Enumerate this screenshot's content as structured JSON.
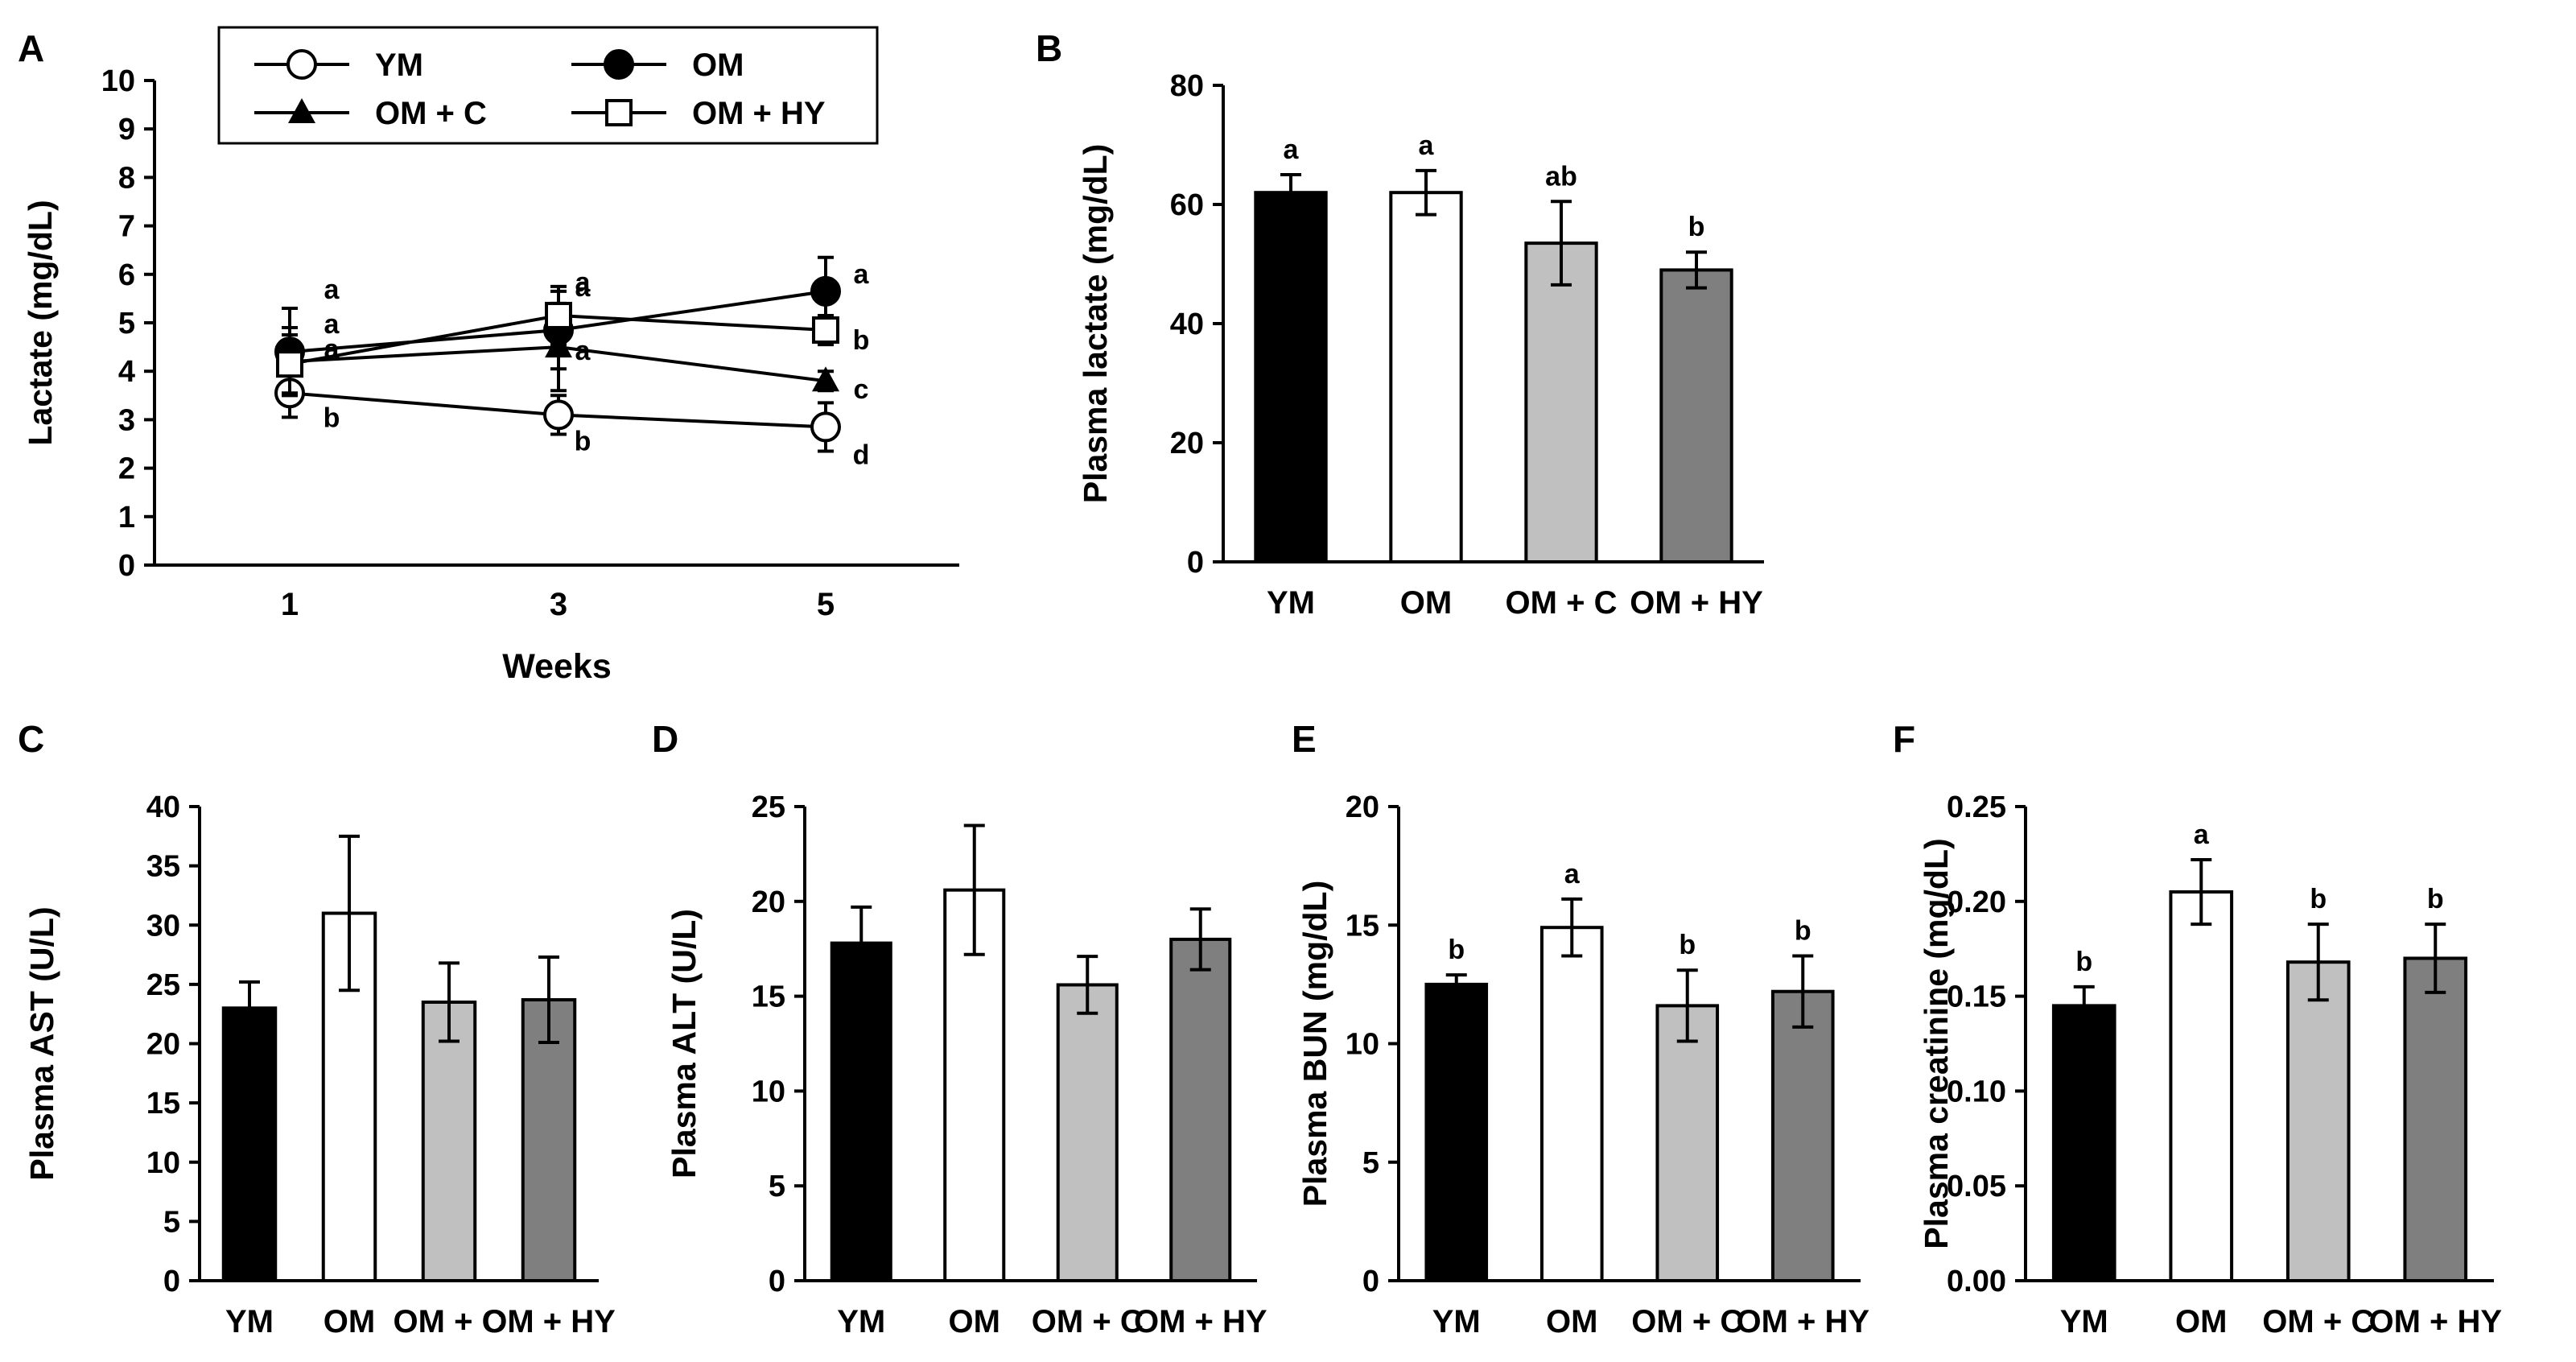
{
  "chart_data": [
    {
      "panel": "A",
      "type": "line",
      "title": "",
      "xlabel": "Weeks",
      "ylabel": "Lactate (mg/dL)",
      "x": [
        "1",
        "3",
        "5"
      ],
      "ylim": [
        0,
        10
      ],
      "yticks": [
        "0",
        "1",
        "2",
        "3",
        "4",
        "5",
        "6",
        "7",
        "8",
        "9",
        "10"
      ],
      "legend_position": "top",
      "series": [
        {
          "name": "YM",
          "marker": "open-circle",
          "values": [
            3.55,
            3.1,
            2.85
          ],
          "errors": [
            0.5,
            0.4,
            0.5
          ],
          "letters": [
            "b",
            "b",
            "d"
          ]
        },
        {
          "name": "OM",
          "marker": "filled-circle",
          "values": [
            4.4,
            4.85,
            5.65
          ],
          "errors": [
            0.9,
            0.8,
            0.7
          ],
          "letters": [
            "a",
            "a",
            "a"
          ]
        },
        {
          "name": "OM + C",
          "marker": "filled-triangle",
          "values": [
            4.2,
            4.5,
            3.8
          ],
          "errors": [
            0.7,
            0.9,
            0.2
          ],
          "letters": [
            "a",
            "a",
            "c"
          ]
        },
        {
          "name": "OM + HY",
          "marker": "open-square",
          "values": [
            4.15,
            5.15,
            4.85
          ],
          "errors": [
            0.6,
            0.6,
            0.3
          ],
          "letters": [
            "a",
            "a",
            "b"
          ]
        }
      ]
    },
    {
      "panel": "B",
      "type": "bar",
      "title": "",
      "xlabel": "",
      "ylabel": "Plasma lactate (mg/dL)",
      "categories": [
        "YM",
        "OM",
        "OM + C",
        "OM + HY"
      ],
      "values": [
        62,
        62,
        53.5,
        49
      ],
      "errors": [
        3,
        3.7,
        7,
        3
      ],
      "letters": [
        "a",
        "a",
        "ab",
        "b"
      ],
      "ylim": [
        0,
        80
      ],
      "yticks": [
        "0",
        "20",
        "40",
        "60",
        "80"
      ]
    },
    {
      "panel": "C",
      "type": "bar",
      "title": "",
      "xlabel": "",
      "ylabel": "Plasma AST (U/L)",
      "categories": [
        "YM",
        "OM",
        "OM + C",
        "OM + HY"
      ],
      "values": [
        23,
        31,
        23.5,
        23.7
      ],
      "errors": [
        2.2,
        6.5,
        3.3,
        3.6
      ],
      "letters": [
        "",
        "",
        "",
        ""
      ],
      "ylim": [
        0,
        40
      ],
      "yticks": [
        "0",
        "5",
        "10",
        "15",
        "20",
        "25",
        "30",
        "35",
        "40"
      ]
    },
    {
      "panel": "D",
      "type": "bar",
      "title": "",
      "xlabel": "",
      "ylabel": "Plasma ALT (U/L)",
      "categories": [
        "YM",
        "OM",
        "OM + C",
        "OM + HY"
      ],
      "values": [
        17.8,
        20.6,
        15.6,
        18
      ],
      "errors": [
        1.9,
        3.4,
        1.5,
        1.6
      ],
      "letters": [
        "",
        "",
        "",
        ""
      ],
      "ylim": [
        0,
        25
      ],
      "yticks": [
        "0",
        "5",
        "10",
        "15",
        "20",
        "25"
      ]
    },
    {
      "panel": "E",
      "type": "bar",
      "title": "",
      "xlabel": "",
      "ylabel": "Plasma BUN (mg/dL)",
      "categories": [
        "YM",
        "OM",
        "OM + C",
        "OM + HY"
      ],
      "values": [
        12.5,
        14.9,
        11.6,
        12.2
      ],
      "errors": [
        0.4,
        1.2,
        1.5,
        1.5
      ],
      "letters": [
        "b",
        "a",
        "b",
        "b"
      ],
      "ylim": [
        0,
        20
      ],
      "yticks": [
        "0",
        "5",
        "10",
        "15",
        "20"
      ]
    },
    {
      "panel": "F",
      "type": "bar",
      "title": "",
      "xlabel": "",
      "ylabel": "Plasma creatinine (mg/dL)",
      "categories": [
        "YM",
        "OM",
        "OM + C",
        "OM + HY"
      ],
      "values": [
        0.145,
        0.205,
        0.168,
        0.17
      ],
      "errors": [
        0.01,
        0.017,
        0.02,
        0.018
      ],
      "letters": [
        "b",
        "a",
        "b",
        "b"
      ],
      "ylim": [
        0,
        0.25
      ],
      "yticks": [
        "0.00",
        "0.05",
        "0.10",
        "0.15",
        "0.20",
        "0.25"
      ]
    }
  ],
  "colors": {
    "YM": "#000000",
    "OM": "#ffffff",
    "OM + C": "#c0c0c0",
    "OM + HY": "#7f7f7f",
    "axis": "#000000"
  }
}
